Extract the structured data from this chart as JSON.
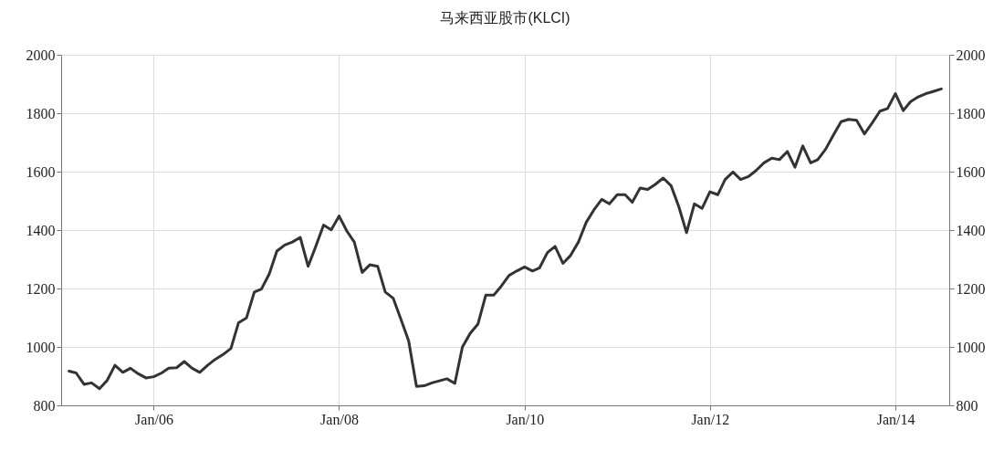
{
  "chart_data": {
    "type": "line",
    "title": "马来西亚股市(KLCI)",
    "x": [
      "2005-02",
      "2005-03",
      "2005-04",
      "2005-05",
      "2005-06",
      "2005-07",
      "2005-08",
      "2005-09",
      "2005-10",
      "2005-11",
      "2005-12",
      "2006-01",
      "2006-02",
      "2006-03",
      "2006-04",
      "2006-05",
      "2006-06",
      "2006-07",
      "2006-08",
      "2006-09",
      "2006-10",
      "2006-11",
      "2006-12",
      "2007-01",
      "2007-02",
      "2007-03",
      "2007-04",
      "2007-05",
      "2007-06",
      "2007-07",
      "2007-08",
      "2007-09",
      "2007-10",
      "2007-11",
      "2007-12",
      "2008-01",
      "2008-02",
      "2008-03",
      "2008-04",
      "2008-05",
      "2008-06",
      "2008-07",
      "2008-08",
      "2008-09",
      "2008-10",
      "2008-11",
      "2008-12",
      "2009-01",
      "2009-03",
      "2009-04",
      "2009-05",
      "2009-06",
      "2009-07",
      "2009-08",
      "2009-09",
      "2009-10",
      "2009-11",
      "2009-12",
      "2010-01",
      "2010-02",
      "2010-03",
      "2010-04",
      "2010-05",
      "2010-06",
      "2010-07",
      "2010-08",
      "2010-09",
      "2010-10",
      "2010-11",
      "2010-12",
      "2011-01",
      "2011-02",
      "2011-03",
      "2011-04",
      "2011-05",
      "2011-06",
      "2011-07",
      "2011-08",
      "2011-09",
      "2011-10",
      "2011-11",
      "2011-12",
      "2012-01",
      "2012-02",
      "2012-03",
      "2012-04",
      "2012-05",
      "2012-06",
      "2012-07",
      "2012-08",
      "2012-09",
      "2012-10",
      "2012-11",
      "2012-12",
      "2013-01",
      "2013-02",
      "2013-03",
      "2013-04",
      "2013-05",
      "2013-06",
      "2013-07",
      "2013-08",
      "2013-09",
      "2013-10",
      "2013-11",
      "2013-12",
      "2014-01",
      "2014-02",
      "2014-03",
      "2014-04",
      "2014-05",
      "2014-06",
      "2014-07"
    ],
    "series": [
      {
        "color": "#333333",
        "values": [
          917,
          911,
          872,
          877,
          857,
          885,
          937,
          913,
          927,
          908,
          894,
          898,
          911,
          927,
          929,
          950,
          927,
          913,
          937,
          958,
          974,
          995,
          1083,
          1099,
          1188,
          1198,
          1250,
          1328,
          1349,
          1359,
          1375,
          1276,
          1344,
          1417,
          1401,
          1448,
          1396,
          1359,
          1255,
          1281,
          1276,
          1188,
          1167,
          1094,
          1021,
          865,
          867,
          877,
          891,
          875,
          1000,
          1047,
          1078,
          1177,
          1177,
          1208,
          1245,
          1260,
          1274,
          1260,
          1271,
          1323,
          1344,
          1286,
          1313,
          1359,
          1427,
          1469,
          1505,
          1490,
          1521,
          1521,
          1495,
          1544,
          1539,
          1557,
          1578,
          1552,
          1479,
          1391,
          1490,
          1474,
          1531,
          1521,
          1573,
          1599,
          1573,
          1583,
          1604,
          1630,
          1646,
          1641,
          1669,
          1615,
          1688,
          1630,
          1641,
          1677,
          1724,
          1771,
          1779,
          1776,
          1729,
          1766,
          1807,
          1816,
          1867,
          1809,
          1839,
          1856,
          1867,
          1875,
          1883
        ]
      }
    ],
    "xlim": [
      "2005-01",
      "2014-08"
    ],
    "xticks": [
      {
        "value": "2006-01",
        "label": "Jan/06"
      },
      {
        "value": "2008-01",
        "label": "Jan/08"
      },
      {
        "value": "2010-01",
        "label": "Jan/10"
      },
      {
        "value": "2012-01",
        "label": "Jan/12"
      },
      {
        "value": "2014-01",
        "label": "Jan/14"
      }
    ],
    "ylim": [
      800,
      2000
    ],
    "yticks": [
      800,
      1000,
      1200,
      1400,
      1600,
      1800,
      2000
    ],
    "y2lim": [
      800,
      2000
    ],
    "y2ticks": [
      800,
      1000,
      1200,
      1400,
      1600,
      1800,
      2000
    ],
    "grid": true
  }
}
